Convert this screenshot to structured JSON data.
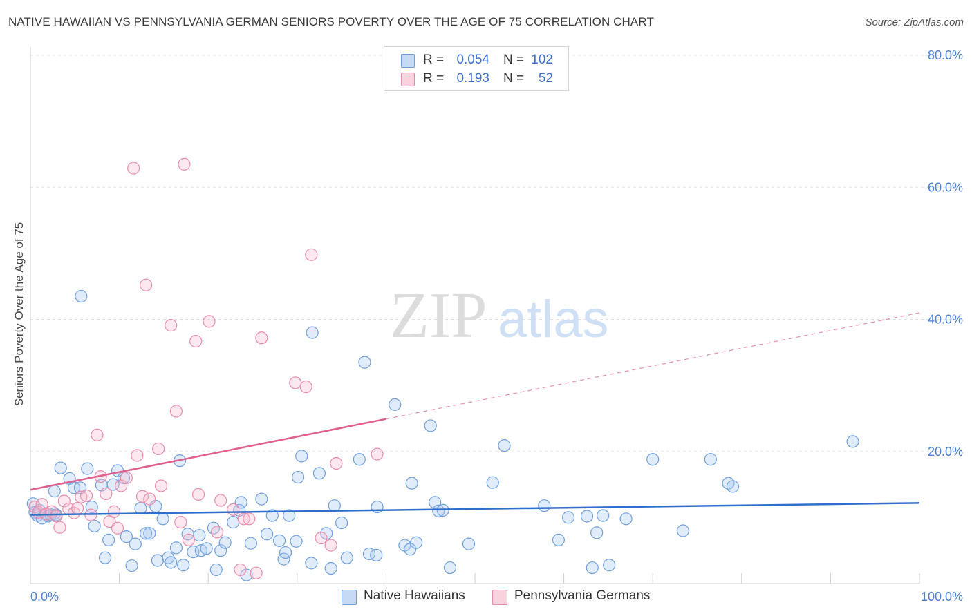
{
  "title": "NATIVE HAWAIIAN VS PENNSYLVANIA GERMAN SENIORS POVERTY OVER THE AGE OF 75 CORRELATION CHART",
  "source": "Source: ZipAtlas.com",
  "watermark": {
    "zip": "ZIP",
    "atlas": "atlas"
  },
  "legend_stats": {
    "rows": [
      {
        "r_label": "R =",
        "r_value": "0.054",
        "n_label": "N =",
        "n_value": "102",
        "color": "#aac8f0"
      },
      {
        "r_label": "R =",
        "r_value": "0.193",
        "n_label": "N =",
        "n_value": "52",
        "color": "#f7bccd"
      }
    ]
  },
  "legend": {
    "items": [
      {
        "label": "Native Hawaiians",
        "color": "#aac8f0"
      },
      {
        "label": "Pennsylvania Germans",
        "color": "#f7bccd"
      }
    ]
  },
  "colors": {
    "blue_fill": "rgba(170,200,240,0.35)",
    "blue_stroke": "#6f9fe0",
    "blue_line": "#2f6fcc",
    "pink_fill": "rgba(247,188,205,0.35)",
    "pink_stroke": "#e98cab",
    "pink_line": "#e0608c",
    "grid": "#e2e2e2",
    "axis": "#cccccc",
    "tick_text": "#4a7fd6"
  },
  "chart_data": {
    "type": "scatter",
    "title": "NATIVE HAWAIIAN VS PENNSYLVANIA GERMAN SENIORS POVERTY OVER THE AGE OF 75 CORRELATION CHART",
    "xlabel": "",
    "ylabel": "Seniors Poverty Over the Age of 75",
    "xlim": [
      0,
      100
    ],
    "ylim": [
      0,
      80
    ],
    "x_tick_labels": [
      "0.0%",
      "100.0%"
    ],
    "y_ticks": [
      20,
      40,
      60,
      80
    ],
    "y_tick_labels": [
      "20.0%",
      "40.0%",
      "60.0%",
      "80.0%"
    ],
    "grid": true,
    "legend_position": "bottom",
    "series": [
      {
        "name": "Native Hawaiians",
        "trend": {
          "x": [
            0,
            100
          ],
          "y": [
            10.4,
            12.2
          ],
          "dashed_from": null
        },
        "points": [
          [
            0.3,
            12.1
          ],
          [
            0.5,
            10.8
          ],
          [
            0.8,
            10.3
          ],
          [
            1.0,
            11.1
          ],
          [
            1.3,
            9.9
          ],
          [
            1.7,
            10.6
          ],
          [
            2.0,
            10.2
          ],
          [
            2.3,
            10.4
          ],
          [
            2.7,
            10.6
          ],
          [
            2.9,
            10.4
          ],
          [
            2.7,
            14.0
          ],
          [
            3.4,
            17.5
          ],
          [
            4.4,
            15.9
          ],
          [
            4.9,
            14.5
          ],
          [
            5.6,
            14.5
          ],
          [
            5.7,
            43.5
          ],
          [
            6.4,
            17.4
          ],
          [
            6.9,
            11.6
          ],
          [
            7.2,
            8.7
          ],
          [
            8.0,
            14.9
          ],
          [
            8.4,
            3.9
          ],
          [
            8.8,
            6.6
          ],
          [
            9.3,
            15.0
          ],
          [
            9.8,
            17.1
          ],
          [
            10.5,
            16.0
          ],
          [
            10.8,
            7.1
          ],
          [
            11.4,
            2.7
          ],
          [
            11.8,
            6.0
          ],
          [
            12.4,
            11.4
          ],
          [
            13.0,
            7.6
          ],
          [
            13.4,
            7.6
          ],
          [
            14.1,
            11.7
          ],
          [
            14.3,
            3.5
          ],
          [
            14.9,
            9.8
          ],
          [
            15.5,
            3.9
          ],
          [
            15.8,
            3.2
          ],
          [
            16.4,
            5.4
          ],
          [
            16.8,
            18.6
          ],
          [
            17.2,
            2.8
          ],
          [
            17.7,
            7.5
          ],
          [
            18.3,
            4.8
          ],
          [
            19.0,
            7.3
          ],
          [
            19.2,
            5.0
          ],
          [
            19.8,
            5.3
          ],
          [
            20.6,
            8.4
          ],
          [
            20.9,
            2.1
          ],
          [
            21.4,
            5.0
          ],
          [
            21.9,
            6.2
          ],
          [
            22.8,
            9.3
          ],
          [
            23.5,
            11.1
          ],
          [
            23.7,
            12.3
          ],
          [
            24.3,
            1.3
          ],
          [
            24.8,
            6.1
          ],
          [
            26.0,
            12.8
          ],
          [
            26.6,
            7.5
          ],
          [
            27.2,
            10.3
          ],
          [
            28.0,
            6.5
          ],
          [
            28.5,
            3.7
          ],
          [
            28.7,
            4.7
          ],
          [
            29.1,
            10.3
          ],
          [
            29.9,
            6.4
          ],
          [
            30.1,
            16.1
          ],
          [
            30.5,
            19.3
          ],
          [
            31.6,
            3.1
          ],
          [
            31.7,
            38.0
          ],
          [
            32.5,
            16.7
          ],
          [
            33.3,
            7.6
          ],
          [
            33.8,
            2.3
          ],
          [
            34.2,
            11.8
          ],
          [
            35.0,
            9.2
          ],
          [
            35.6,
            3.9
          ],
          [
            37.0,
            18.8
          ],
          [
            37.6,
            33.5
          ],
          [
            38.1,
            4.5
          ],
          [
            38.9,
            4.3
          ],
          [
            39.0,
            11.6
          ],
          [
            41.0,
            27.1
          ],
          [
            42.1,
            5.8
          ],
          [
            42.7,
            5.2
          ],
          [
            42.9,
            15.2
          ],
          [
            43.4,
            6.2
          ],
          [
            45.0,
            23.9
          ],
          [
            45.5,
            12.3
          ],
          [
            45.9,
            11.0
          ],
          [
            46.4,
            11.1
          ],
          [
            47.2,
            2.4
          ],
          [
            49.3,
            6.0
          ],
          [
            52.0,
            15.3
          ],
          [
            53.3,
            20.9
          ],
          [
            57.8,
            11.8
          ],
          [
            59.4,
            6.6
          ],
          [
            60.5,
            10.0
          ],
          [
            62.6,
            10.2
          ],
          [
            63.2,
            2.4
          ],
          [
            63.7,
            7.7
          ],
          [
            64.4,
            10.3
          ],
          [
            65.1,
            2.8
          ],
          [
            67.0,
            9.8
          ],
          [
            70.0,
            18.8
          ],
          [
            73.4,
            8.0
          ],
          [
            76.5,
            18.8
          ],
          [
            78.5,
            15.2
          ],
          [
            79.0,
            14.7
          ],
          [
            92.5,
            21.5
          ]
        ]
      },
      {
        "name": "Pennsylvania Germans",
        "trend": {
          "x": [
            0,
            100
          ],
          "y": [
            14.2,
            41.0
          ],
          "dashed_from": 40
        },
        "points": [
          [
            0.5,
            11.6
          ],
          [
            0.9,
            10.8
          ],
          [
            1.3,
            12.0
          ],
          [
            1.8,
            10.5
          ],
          [
            2.4,
            10.9
          ],
          [
            2.9,
            10.2
          ],
          [
            3.3,
            8.5
          ],
          [
            3.8,
            12.5
          ],
          [
            4.3,
            11.3
          ],
          [
            4.9,
            10.7
          ],
          [
            5.3,
            11.4
          ],
          [
            5.7,
            13.1
          ],
          [
            6.3,
            13.3
          ],
          [
            6.8,
            10.4
          ],
          [
            7.5,
            22.5
          ],
          [
            7.9,
            16.2
          ],
          [
            8.5,
            13.6
          ],
          [
            8.9,
            9.4
          ],
          [
            9.4,
            10.9
          ],
          [
            9.8,
            8.4
          ],
          [
            10.2,
            14.8
          ],
          [
            10.8,
            16.0
          ],
          [
            11.6,
            62.9
          ],
          [
            12.0,
            19.4
          ],
          [
            12.6,
            13.2
          ],
          [
            13.0,
            45.2
          ],
          [
            13.4,
            12.8
          ],
          [
            14.4,
            20.4
          ],
          [
            14.7,
            14.8
          ],
          [
            15.8,
            39.1
          ],
          [
            16.4,
            26.1
          ],
          [
            16.9,
            9.3
          ],
          [
            17.3,
            63.5
          ],
          [
            17.8,
            6.6
          ],
          [
            18.6,
            36.7
          ],
          [
            18.9,
            13.5
          ],
          [
            20.1,
            39.7
          ],
          [
            21.0,
            7.8
          ],
          [
            21.4,
            12.6
          ],
          [
            22.8,
            11.2
          ],
          [
            23.6,
            2.1
          ],
          [
            24.0,
            9.8
          ],
          [
            24.6,
            9.8
          ],
          [
            25.4,
            1.6
          ],
          [
            26.0,
            37.2
          ],
          [
            29.8,
            30.4
          ],
          [
            31.0,
            29.8
          ],
          [
            31.6,
            49.8
          ],
          [
            32.7,
            6.9
          ],
          [
            33.8,
            5.8
          ],
          [
            34.4,
            18.2
          ],
          [
            39.0,
            19.6
          ]
        ]
      }
    ]
  }
}
